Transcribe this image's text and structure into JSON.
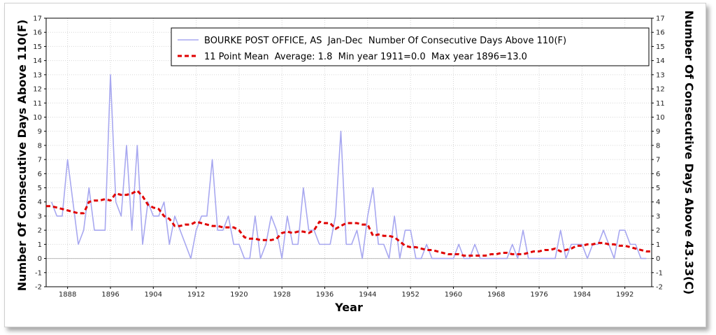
{
  "chart_data": {
    "type": "line",
    "xlabel": "Year",
    "ylabel_left": "Number Of Consecutive Days Above 110(F)",
    "ylabel_right": "Number Of Consecutive Days Above 43.33(C)",
    "xlim": [
      1884,
      1997
    ],
    "ylim": [
      -2,
      17
    ],
    "x_ticks": [
      1888,
      1896,
      1904,
      1912,
      1920,
      1928,
      1936,
      1944,
      1952,
      1960,
      1968,
      1976,
      1984,
      1992
    ],
    "y_ticks": [
      -2,
      -1,
      0,
      1,
      2,
      3,
      4,
      5,
      6,
      7,
      8,
      9,
      10,
      11,
      12,
      13,
      14,
      15,
      16,
      17
    ],
    "grid": true,
    "legend_position": "top-right",
    "series": [
      {
        "name": "BOURKE POST OFFICE, AS  Jan-Dec  Number Of Consecutive Days Above 110(F)",
        "color": "#a8a8f0",
        "style": "solid",
        "x": [
          1885,
          1886,
          1887,
          1888,
          1889,
          1890,
          1891,
          1892,
          1893,
          1894,
          1895,
          1896,
          1897,
          1898,
          1899,
          1900,
          1901,
          1902,
          1903,
          1904,
          1905,
          1906,
          1907,
          1908,
          1909,
          1910,
          1911,
          1912,
          1913,
          1914,
          1915,
          1916,
          1917,
          1918,
          1919,
          1920,
          1921,
          1922,
          1923,
          1924,
          1925,
          1926,
          1927,
          1928,
          1929,
          1930,
          1931,
          1932,
          1933,
          1934,
          1935,
          1936,
          1937,
          1938,
          1939,
          1940,
          1941,
          1942,
          1943,
          1944,
          1945,
          1946,
          1947,
          1948,
          1949,
          1950,
          1951,
          1952,
          1953,
          1954,
          1955,
          1956,
          1957,
          1958,
          1959,
          1960,
          1961,
          1962,
          1963,
          1964,
          1965,
          1966,
          1967,
          1968,
          1969,
          1970,
          1971,
          1972,
          1973,
          1974,
          1975,
          1976,
          1977,
          1978,
          1979,
          1980,
          1981,
          1982,
          1983,
          1984,
          1985,
          1986,
          1987,
          1988,
          1989,
          1990,
          1991,
          1992,
          1993,
          1994,
          1995,
          1996
        ],
        "y": [
          4,
          3,
          3,
          7,
          4,
          1,
          2,
          5,
          2,
          2,
          2,
          13,
          4,
          3,
          8,
          2,
          8,
          1,
          4,
          3,
          3,
          4,
          1,
          3,
          2,
          1,
          0,
          2,
          3,
          3,
          7,
          2,
          2,
          3,
          1,
          1,
          0,
          0,
          3,
          0,
          1,
          3,
          2,
          0,
          3,
          1,
          1,
          5,
          2,
          2,
          1,
          1,
          1,
          3,
          9,
          1,
          1,
          2,
          0,
          3,
          5,
          1,
          1,
          0,
          3,
          0,
          2,
          2,
          0,
          0,
          1,
          0,
          0,
          0,
          0,
          0,
          1,
          0,
          0,
          1,
          0,
          0,
          0,
          0,
          0,
          0,
          1,
          0,
          2,
          0,
          0,
          0,
          0,
          0,
          0,
          2,
          0,
          1,
          1,
          1,
          0,
          1,
          1,
          2,
          1,
          0,
          2,
          2,
          1,
          1,
          0,
          0
        ],
        "labels_shown": false
      },
      {
        "name": "11 Point Mean  Average: 1.8  Min year 1911=0.0  Max year 1896=13.0",
        "color": "#e00000",
        "style": "dashed",
        "x": [
          1884,
          1885,
          1886,
          1887,
          1888,
          1889,
          1890,
          1891,
          1892,
          1893,
          1894,
          1895,
          1896,
          1897,
          1898,
          1899,
          1900,
          1901,
          1902,
          1903,
          1904,
          1905,
          1906,
          1907,
          1908,
          1909,
          1910,
          1911,
          1912,
          1913,
          1914,
          1915,
          1916,
          1917,
          1918,
          1919,
          1920,
          1921,
          1922,
          1923,
          1924,
          1925,
          1926,
          1927,
          1928,
          1929,
          1930,
          1931,
          1932,
          1933,
          1934,
          1935,
          1936,
          1937,
          1938,
          1939,
          1940,
          1941,
          1942,
          1943,
          1944,
          1945,
          1946,
          1947,
          1948,
          1949,
          1950,
          1951,
          1952,
          1953,
          1954,
          1955,
          1956,
          1957,
          1958,
          1959,
          1960,
          1961,
          1962,
          1963,
          1964,
          1965,
          1966,
          1967,
          1968,
          1969,
          1970,
          1971,
          1972,
          1973,
          1974,
          1975,
          1976,
          1977,
          1978,
          1979,
          1980,
          1981,
          1982,
          1983,
          1984,
          1985,
          1986,
          1987,
          1988,
          1989,
          1990,
          1991,
          1992,
          1993,
          1994,
          1995,
          1996,
          1997
        ],
        "y": [
          3.7,
          3.7,
          3.6,
          3.5,
          3.4,
          3.3,
          3.2,
          3.2,
          4.0,
          4.1,
          4.1,
          4.2,
          4.1,
          4.6,
          4.5,
          4.5,
          4.6,
          4.8,
          4.4,
          3.8,
          3.6,
          3.5,
          3.0,
          2.8,
          2.3,
          2.3,
          2.4,
          2.4,
          2.6,
          2.5,
          2.4,
          2.3,
          2.3,
          2.2,
          2.2,
          2.2,
          2.0,
          1.5,
          1.4,
          1.4,
          1.3,
          1.3,
          1.3,
          1.4,
          1.8,
          1.9,
          1.8,
          1.9,
          1.9,
          1.8,
          2.0,
          2.6,
          2.5,
          2.5,
          2.1,
          2.3,
          2.5,
          2.5,
          2.5,
          2.4,
          2.4,
          1.6,
          1.7,
          1.6,
          1.6,
          1.5,
          1.2,
          0.9,
          0.8,
          0.8,
          0.7,
          0.6,
          0.6,
          0.5,
          0.4,
          0.3,
          0.3,
          0.3,
          0.2,
          0.2,
          0.2,
          0.2,
          0.2,
          0.3,
          0.3,
          0.4,
          0.4,
          0.3,
          0.3,
          0.3,
          0.4,
          0.5,
          0.5,
          0.6,
          0.6,
          0.7,
          0.5,
          0.6,
          0.7,
          0.9,
          0.9,
          1.0,
          1.0,
          1.1,
          1.1,
          1.0,
          1.0,
          0.9,
          0.9,
          0.8,
          0.7,
          0.6,
          0.5,
          0.5
        ],
        "labels_shown": false
      }
    ]
  }
}
